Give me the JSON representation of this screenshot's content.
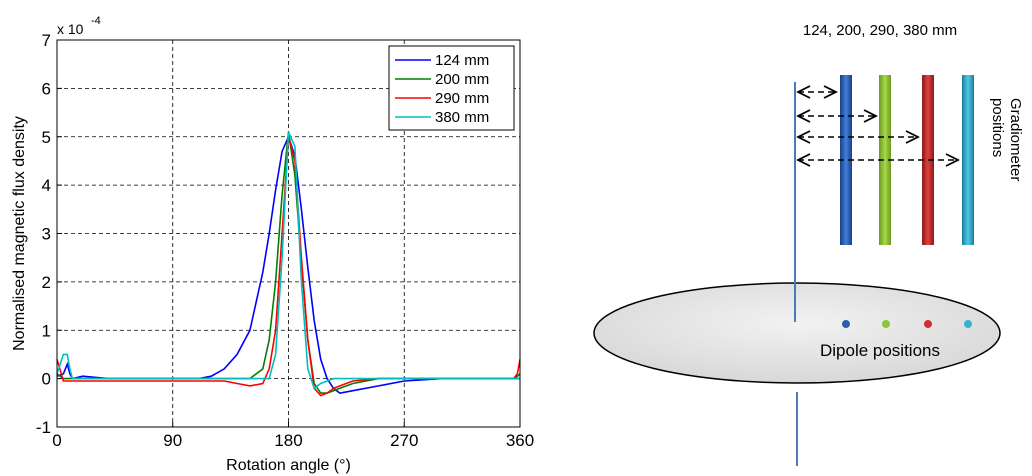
{
  "chart_data": {
    "type": "line",
    "xlabel": "Rotation angle (°)",
    "ylabel": "Normalised magnetic flux density",
    "y_scale_label": "x 10",
    "y_scale_exponent": "-4",
    "x": [
      0,
      5,
      8,
      10,
      12,
      20,
      40,
      60,
      90,
      110,
      120,
      130,
      140,
      150,
      160,
      165,
      170,
      175,
      180,
      185,
      190,
      195,
      200,
      205,
      210,
      215,
      220,
      230,
      250,
      270,
      300,
      330,
      355,
      358,
      360
    ],
    "series": [
      {
        "name": "124 mm",
        "color": "#0000ff",
        "values": [
          0.05,
          0.1,
          0.3,
          0.1,
          0,
          0.05,
          0,
          0,
          0,
          0,
          0.05,
          0.2,
          0.5,
          1.0,
          2.2,
          3.0,
          3.9,
          4.7,
          5.0,
          4.6,
          3.5,
          2.3,
          1.2,
          0.4,
          0,
          -0.2,
          -0.3,
          -0.25,
          -0.15,
          -0.05,
          0,
          0,
          0,
          0,
          0
        ]
      },
      {
        "name": "200 mm",
        "color": "#008000",
        "values": [
          0.1,
          0,
          0,
          0,
          0,
          0,
          0,
          0,
          0,
          0,
          0,
          0,
          0,
          0,
          0.2,
          0.8,
          2.0,
          3.8,
          5.1,
          4.2,
          2.4,
          0.8,
          -0.1,
          -0.3,
          -0.3,
          -0.25,
          -0.2,
          -0.1,
          0,
          0,
          0,
          0,
          0,
          0.05,
          0.1
        ]
      },
      {
        "name": "290 mm",
        "color": "#ff0000",
        "values": [
          0.4,
          -0.05,
          -0.05,
          -0.05,
          -0.05,
          -0.05,
          -0.05,
          -0.05,
          -0.05,
          -0.05,
          -0.05,
          -0.05,
          -0.1,
          -0.15,
          -0.1,
          0.2,
          1.0,
          3.0,
          5.0,
          4.5,
          2.5,
          0.8,
          -0.2,
          -0.35,
          -0.3,
          -0.2,
          -0.15,
          -0.05,
          0,
          0,
          0,
          0,
          0,
          0.1,
          0.4
        ]
      },
      {
        "name": "380 mm",
        "color": "#00bfbf",
        "values": [
          0.1,
          0.5,
          0.5,
          0.2,
          0,
          0,
          0,
          0,
          0,
          0,
          0,
          0,
          0,
          0,
          0,
          0,
          0.5,
          2.5,
          5.1,
          4.8,
          2.0,
          0.2,
          -0.2,
          -0.1,
          -0.05,
          0,
          0,
          0,
          0,
          0,
          0,
          0,
          0,
          0,
          0
        ]
      }
    ],
    "xlim": [
      0,
      360
    ],
    "xticks": [
      0,
      90,
      180,
      270,
      360
    ],
    "ylim": [
      -1,
      7
    ],
    "yticks": [
      -1,
      0,
      1,
      2,
      3,
      4,
      5,
      6,
      7
    ],
    "grid": true,
    "legend": "top-right"
  },
  "diagram": {
    "distances_label": "124, 200, 290, 380 mm",
    "gradiometer_label": [
      "Gradiometer",
      "positions"
    ],
    "dipole_label": "Dipole positions"
  }
}
